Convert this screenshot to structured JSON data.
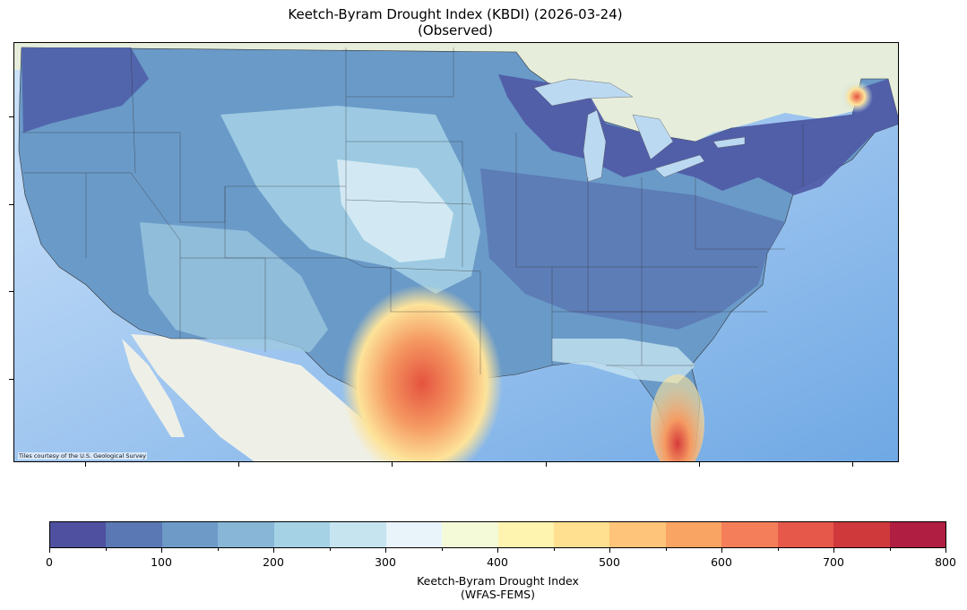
{
  "title": {
    "line1": "Keetch-Byram Drought Index (KBDI) (2026-03-24)",
    "line2": "(Observed)"
  },
  "map": {
    "attribution": "Tiles courtesy of the U.S. Geological Survey",
    "land_color": "#eef2e6",
    "water_color": "#a9d0f5"
  },
  "colorbar": {
    "title_line1": "Keetch-Byram Drought Index",
    "title_line2": "(WFAS-FEMS)",
    "min": 0,
    "max": 800,
    "tick_labels": [
      "0",
      "100",
      "200",
      "300",
      "400",
      "500",
      "600",
      "700",
      "800"
    ],
    "colors": [
      "#5050a0",
      "#5a78b4",
      "#6e9ac8",
      "#88b6d6",
      "#a6d2e6",
      "#c6e4f0",
      "#e8f4fa",
      "#f4fad8",
      "#fff3b0",
      "#fee090",
      "#fdc47a",
      "#faa464",
      "#f47e5a",
      "#e6584a",
      "#d0393c",
      "#b01e42"
    ]
  }
}
